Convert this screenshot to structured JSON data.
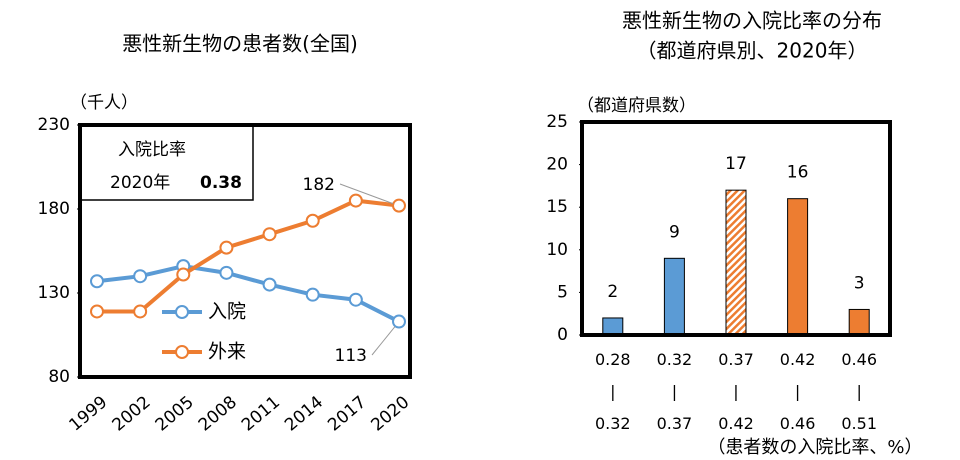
{
  "chart_data": [
    {
      "type": "line",
      "title": "悪性新生物の患者数(全国)",
      "y_label": "（千人）",
      "categories": [
        "1999",
        "2002",
        "2005",
        "2008",
        "2011",
        "2014",
        "2017",
        "2020"
      ],
      "series": [
        {
          "name": "入院",
          "color": "#5b9bd5",
          "values": [
            137,
            140,
            146,
            142,
            135,
            129,
            126,
            113
          ]
        },
        {
          "name": "外来",
          "color": "#ed7d31",
          "values": [
            119,
            119,
            141,
            157,
            165,
            173,
            185,
            182
          ]
        }
      ],
      "ylim": [
        80,
        230
      ],
      "yticks": [
        80,
        130,
        180,
        230
      ],
      "inset": {
        "label": "入院比率",
        "year": "2020年",
        "ratio": 0.38
      }
    },
    {
      "type": "bar",
      "title": "悪性新生物の入院比率の分布",
      "subtitle": "（都道府県別、2020年）",
      "y_label": "（都道府県数）",
      "x_label": "（患者数の入院比率、%）",
      "categories": [
        "0.28\n|\n0.32",
        "0.32\n|\n0.37",
        "0.37\n|\n0.42",
        "0.42\n|\n0.46",
        "0.46\n|\n0.51"
      ],
      "values": [
        2,
        9,
        17,
        16,
        3
      ],
      "colors": [
        "#5b9bd5",
        "#5b9bd5",
        "#ed7d31",
        "#ed7d31",
        "#ed7d31"
      ],
      "hatched": [
        false,
        false,
        true,
        false,
        false
      ],
      "ylim": [
        0,
        25
      ],
      "yticks": [
        0,
        5,
        10,
        15,
        20,
        25
      ]
    }
  ]
}
